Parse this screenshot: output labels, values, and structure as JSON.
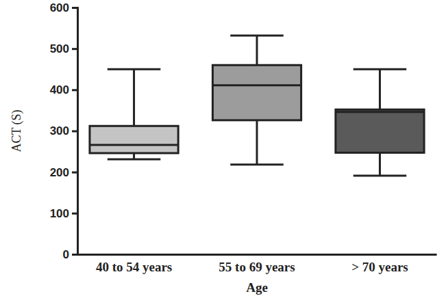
{
  "chart_data": {
    "type": "box",
    "categories": [
      "40 to 54 years",
      "55 to 69 years",
      "> 70 years"
    ],
    "min": [
      231,
      218,
      191
    ],
    "q1": [
      246,
      326,
      247
    ],
    "median": [
      266,
      411,
      346
    ],
    "q3": [
      312,
      460,
      352
    ],
    "max": [
      450,
      532,
      450
    ],
    "colors": [
      "#c4c4c4",
      "#9c9c9c",
      "#5a5a5a"
    ],
    "x_label": "Age",
    "y_label": "ACT (S)",
    "ylim": [
      0,
      600
    ],
    "yticks": [
      0,
      100,
      200,
      300,
      400,
      500,
      600
    ]
  }
}
